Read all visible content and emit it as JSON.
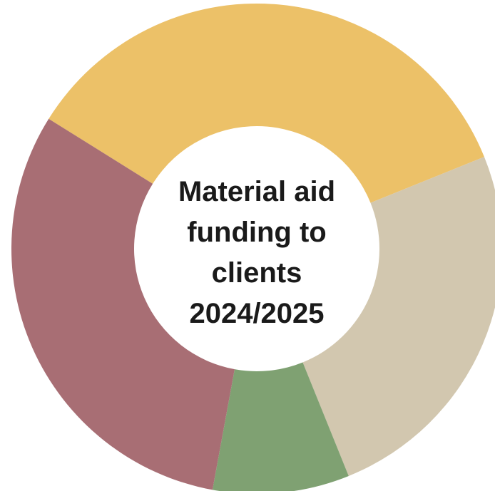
{
  "chart_data": {
    "type": "pie",
    "variant": "donut",
    "title_lines": [
      "Material aid",
      "funding to",
      "clients",
      "2024/2025"
    ],
    "slices": [
      {
        "value": 35.0,
        "color": "#ECC168"
      },
      {
        "value": 25.0,
        "color": "#D2C7AF"
      },
      {
        "value": 9.0,
        "color": "#7FA172"
      },
      {
        "value": 31.0,
        "color": "#A86E74"
      }
    ],
    "start_angle_deg": 302,
    "direction": "clockwise",
    "legend": "none"
  }
}
